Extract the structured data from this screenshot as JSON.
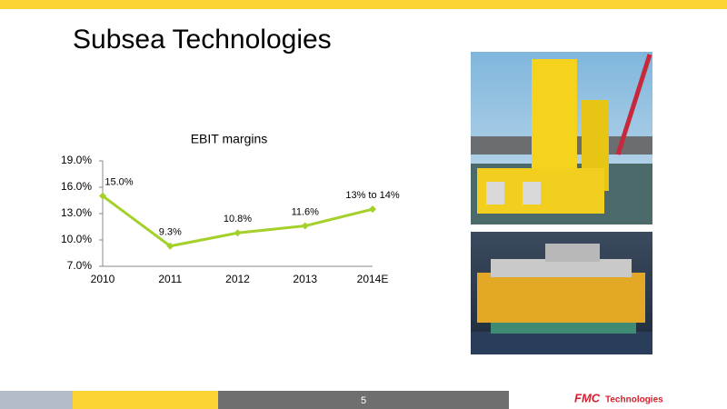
{
  "slide": {
    "title": "Subsea Technologies",
    "page_number": "5",
    "logo_mark": "FMC",
    "logo_text": "Technologies"
  },
  "chart_data": {
    "type": "line",
    "title": "EBIT margins",
    "categories": [
      "2010",
      "2011",
      "2012",
      "2013",
      "2014E"
    ],
    "values": [
      15.0,
      9.3,
      10.8,
      11.6,
      13.5
    ],
    "value_labels": [
      "15.0%",
      "9.3%",
      "10.8%",
      "11.6%",
      "13% to 14%"
    ],
    "color": "#a3d029",
    "ylim": [
      7,
      19
    ],
    "yticks": [
      {
        "value": 7,
        "label": "7.0%"
      },
      {
        "value": 10,
        "label": "10.0%"
      },
      {
        "value": 13,
        "label": "13.0%"
      },
      {
        "value": 16,
        "label": "16.0%"
      },
      {
        "value": 19,
        "label": "19.0%"
      }
    ],
    "grid": false
  }
}
